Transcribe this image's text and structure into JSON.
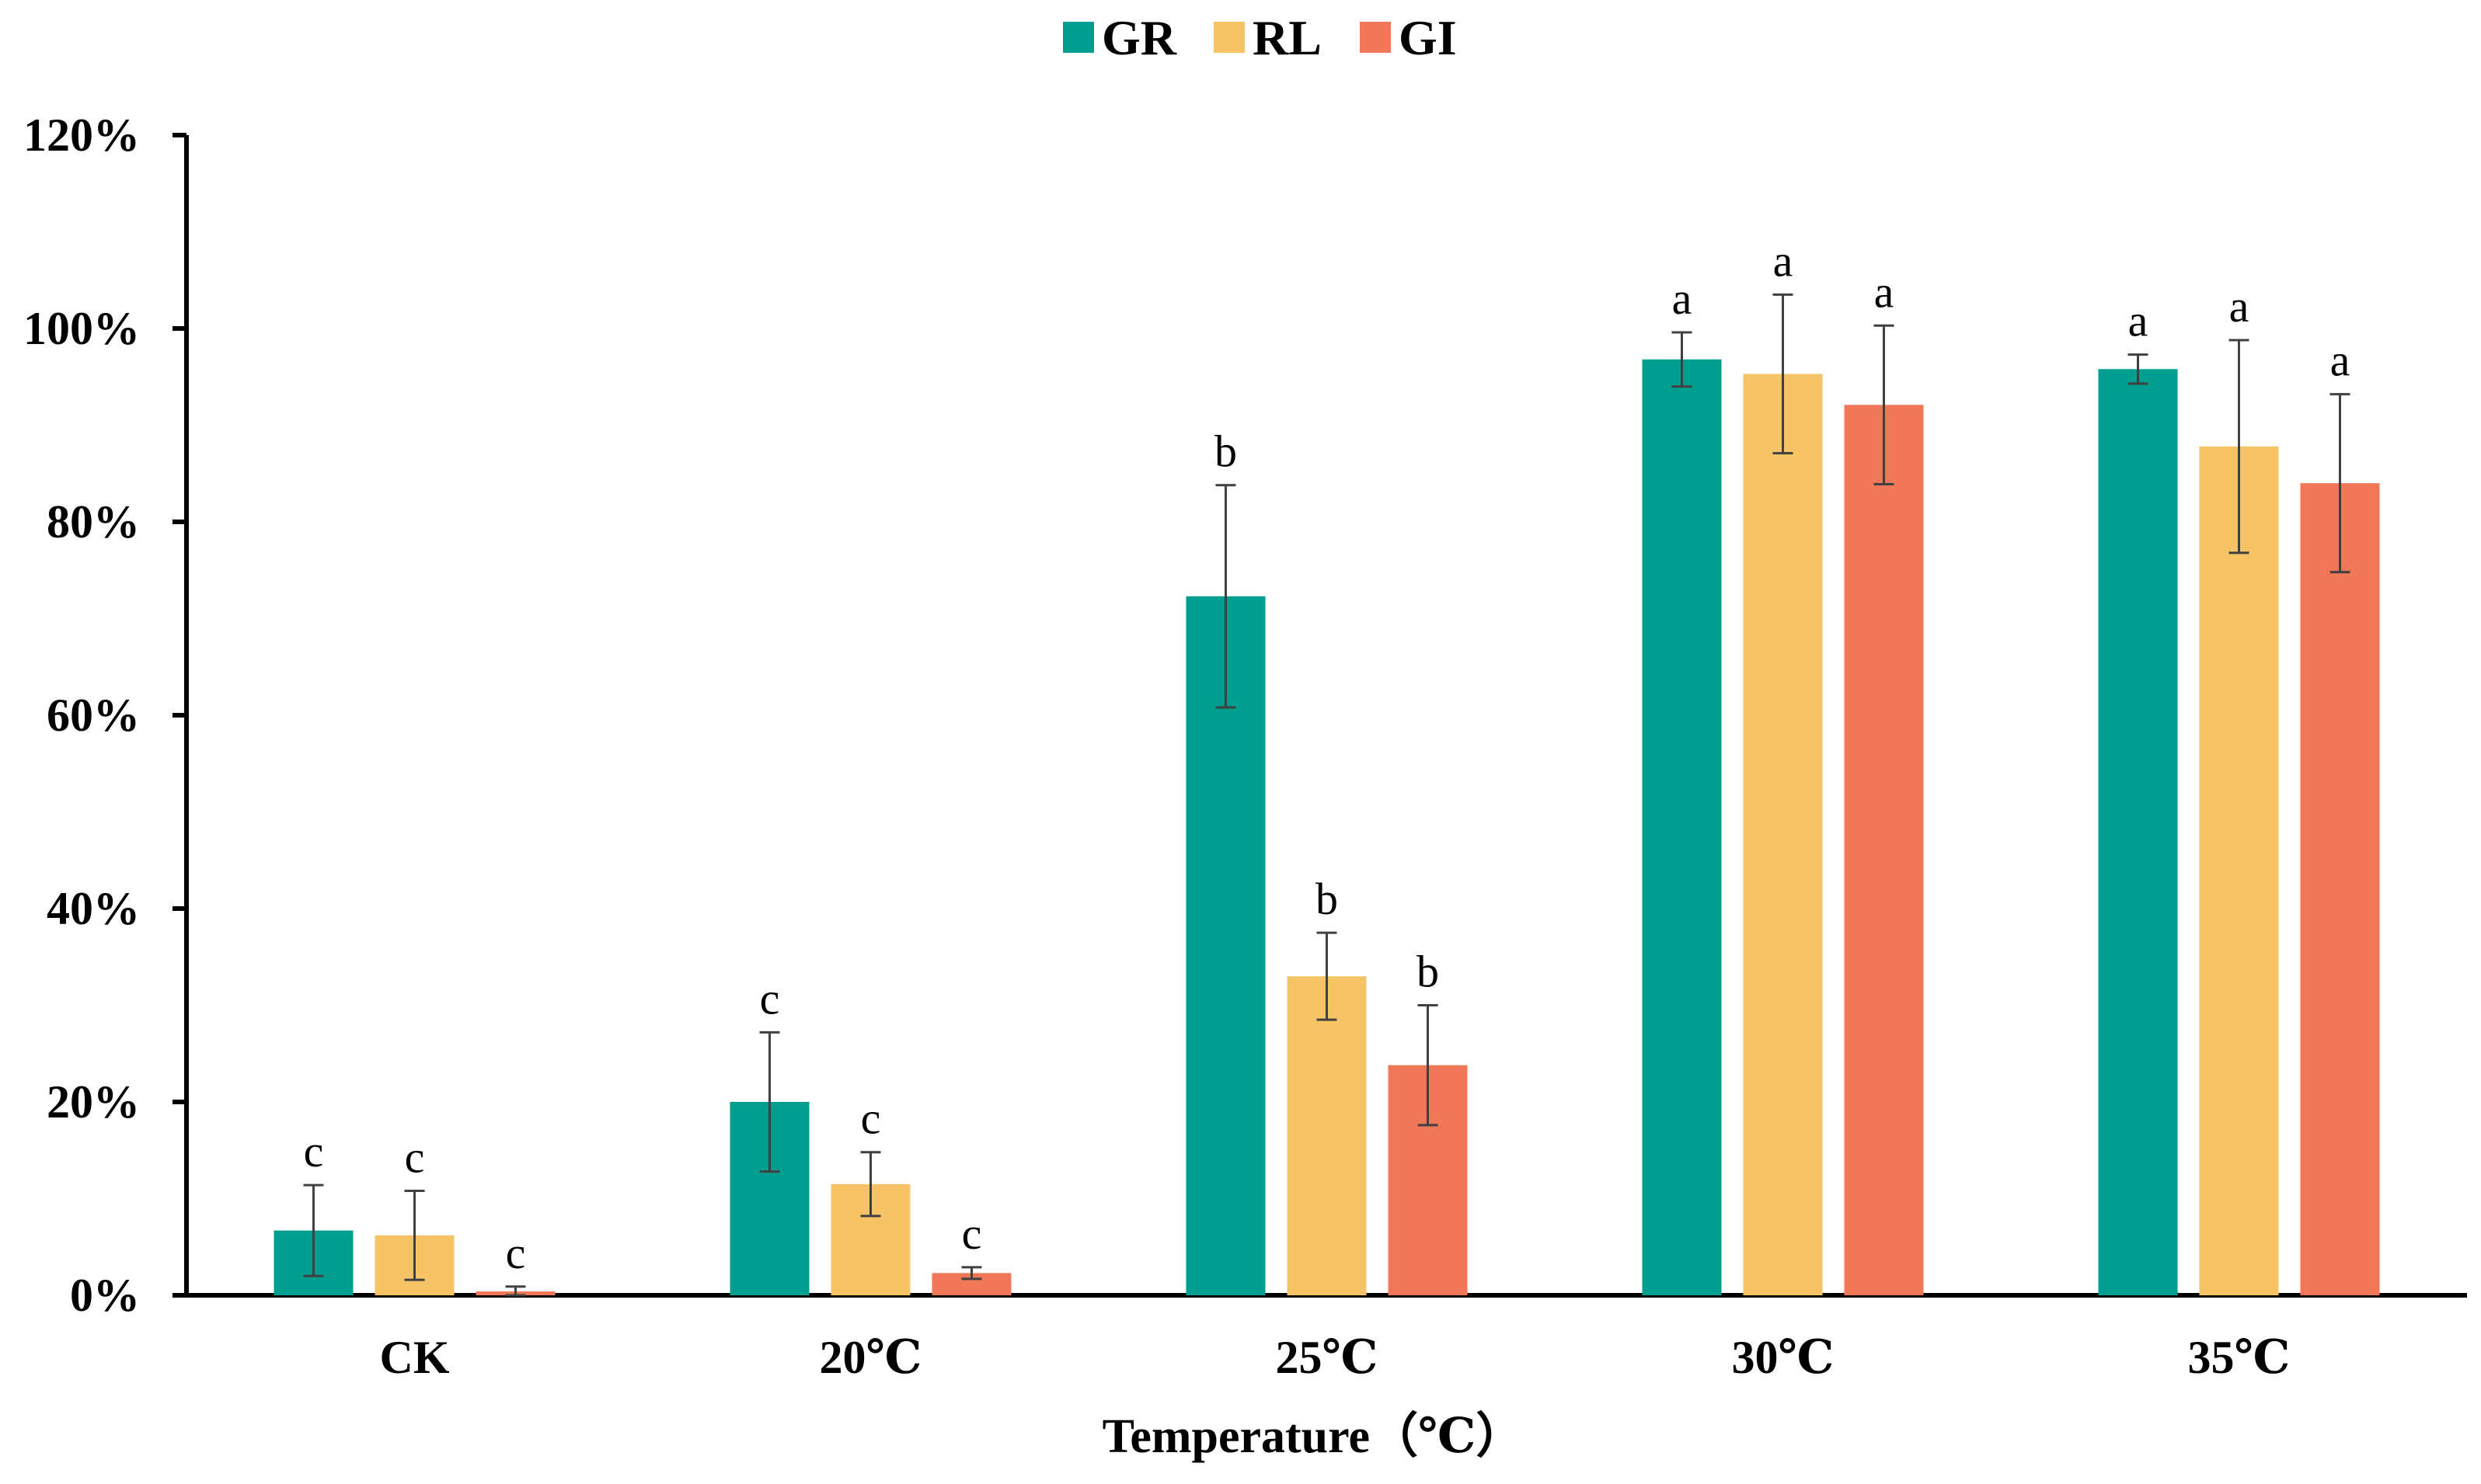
{
  "chart_data": {
    "type": "bar",
    "title": "",
    "xlabel": "Temperature（℃）",
    "ylabel": "",
    "ylim": [
      0,
      1.2
    ],
    "y_ticks": [
      0,
      0.2,
      0.4,
      0.6,
      0.8,
      1.0,
      1.2
    ],
    "y_tick_labels": [
      "0%",
      "20%",
      "40%",
      "60%",
      "80%",
      "100%",
      "120%"
    ],
    "categories": [
      "CK",
      "20℃",
      "25℃",
      "30℃",
      "35℃"
    ],
    "legend_position": "top-center",
    "grid": false,
    "series": [
      {
        "name": "GR",
        "color": "#009e8e",
        "values": [
          0.067,
          0.2,
          0.723,
          0.968,
          0.958
        ],
        "errors": [
          0.047,
          0.072,
          0.115,
          0.028,
          0.015
        ],
        "significance": [
          "c",
          "c",
          "b",
          "a",
          "a"
        ]
      },
      {
        "name": "RL",
        "color": "#f6c466",
        "values": [
          0.062,
          0.115,
          0.33,
          0.953,
          0.878
        ],
        "errors": [
          0.046,
          0.033,
          0.045,
          0.082,
          0.11
        ],
        "significance": [
          "c",
          "c",
          "b",
          "a",
          "a"
        ]
      },
      {
        "name": "GI",
        "color": "#f07858",
        "values": [
          0.004,
          0.023,
          0.238,
          0.921,
          0.84
        ],
        "errors": [
          0.005,
          0.006,
          0.062,
          0.082,
          0.092
        ],
        "significance": [
          "c",
          "c",
          "b",
          "a",
          "a"
        ]
      }
    ]
  }
}
